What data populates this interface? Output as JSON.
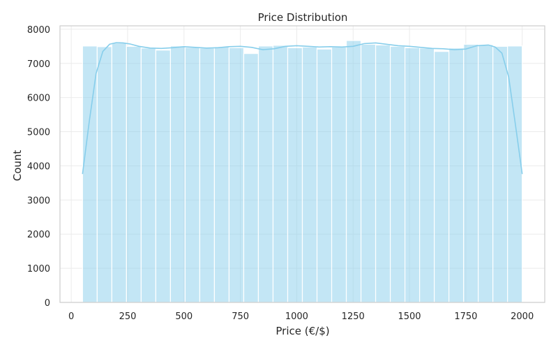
{
  "chart_data": {
    "type": "histogram",
    "title": "Price Distribution",
    "xlabel": "Price (€/$)",
    "ylabel": "Count",
    "xlim": [
      -50,
      2100
    ],
    "ylim": [
      0,
      8100
    ],
    "x_ticks": [
      0,
      250,
      500,
      750,
      1000,
      1250,
      1500,
      1750,
      2000
    ],
    "y_ticks": [
      0,
      1000,
      2000,
      3000,
      4000,
      5000,
      6000,
      7000,
      8000
    ],
    "grid": true,
    "bin_start": 50,
    "bin_width": 65,
    "bar_color": "#87ceeb",
    "values": [
      7510,
      7490,
      7600,
      7500,
      7450,
      7390,
      7510,
      7470,
      7450,
      7490,
      7460,
      7290,
      7510,
      7530,
      7460,
      7480,
      7420,
      7480,
      7670,
      7560,
      7540,
      7500,
      7460,
      7450,
      7350,
      7450,
      7560,
      7550,
      7500,
      7510
    ],
    "kde": {
      "color": "#87ceeb",
      "x": [
        50,
        80,
        110,
        140,
        170,
        200,
        230,
        260,
        300,
        350,
        400,
        450,
        500,
        550,
        600,
        650,
        700,
        750,
        800,
        850,
        900,
        950,
        1000,
        1050,
        1100,
        1150,
        1200,
        1250,
        1300,
        1350,
        1400,
        1450,
        1500,
        1550,
        1600,
        1650,
        1700,
        1750,
        1800,
        1850,
        1880,
        1910,
        1940,
        1970,
        2000
      ],
      "y": [
        3760,
        5300,
        6700,
        7350,
        7560,
        7610,
        7600,
        7570,
        7500,
        7450,
        7440,
        7460,
        7490,
        7470,
        7450,
        7460,
        7490,
        7500,
        7470,
        7400,
        7430,
        7500,
        7520,
        7500,
        7480,
        7490,
        7480,
        7500,
        7580,
        7600,
        7560,
        7520,
        7500,
        7470,
        7440,
        7430,
        7400,
        7420,
        7520,
        7540,
        7480,
        7300,
        6600,
        5200,
        3760
      ]
    }
  }
}
